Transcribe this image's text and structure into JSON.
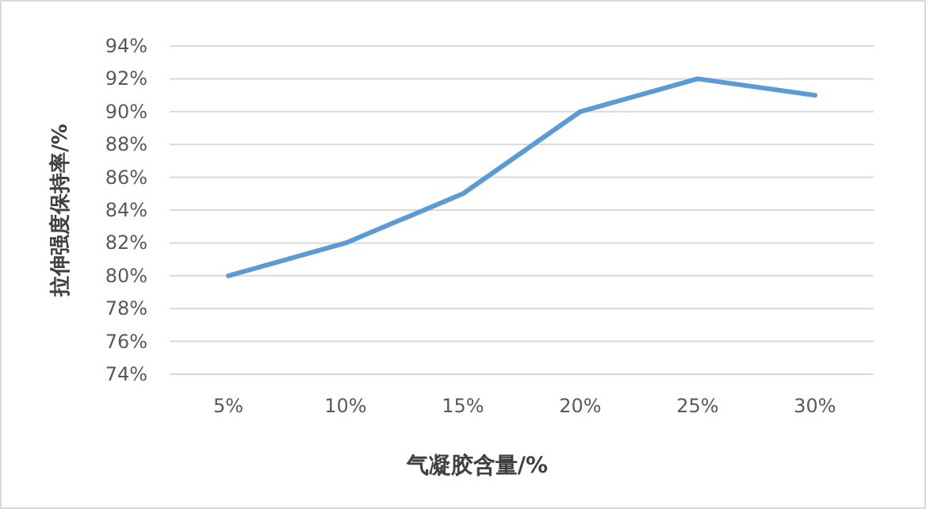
{
  "chart_data": {
    "type": "line",
    "xlabel": "气凝胶含量/%",
    "ylabel": "拉伸强度保持率/%",
    "categories": [
      "5%",
      "10%",
      "15%",
      "20%",
      "25%",
      "30%"
    ],
    "values": [
      80,
      82,
      85,
      90,
      92,
      91
    ],
    "color": "#5b9bd5",
    "ylim": [
      74,
      94
    ],
    "yticks": [
      {
        "value": 74,
        "label": "74%"
      },
      {
        "value": 76,
        "label": "76%"
      },
      {
        "value": 78,
        "label": "78%"
      },
      {
        "value": 80,
        "label": "80%"
      },
      {
        "value": 82,
        "label": "82%"
      },
      {
        "value": 84,
        "label": "84%"
      },
      {
        "value": 86,
        "label": "86%"
      },
      {
        "value": 88,
        "label": "88%"
      },
      {
        "value": 90,
        "label": "90%"
      },
      {
        "value": 92,
        "label": "92%"
      },
      {
        "value": 94,
        "label": "94%"
      }
    ],
    "grid": "y"
  }
}
